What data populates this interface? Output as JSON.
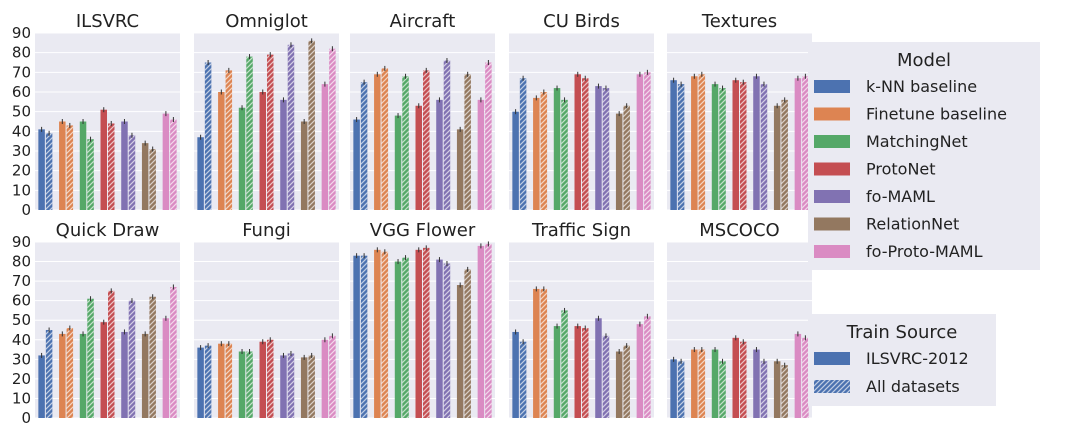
{
  "chart_data": {
    "type": "bar",
    "ylim": [
      0,
      90
    ],
    "yticks": [
      "0",
      "10",
      "20",
      "30",
      "40",
      "50",
      "60",
      "70",
      "80",
      "90"
    ],
    "grid": true,
    "legends": [
      {
        "title": "Model",
        "placement": "right-top",
        "entries": [
          {
            "name": "k-NN baseline",
            "color": "#4c72b0"
          },
          {
            "name": "Finetune baseline",
            "color": "#dd8452"
          },
          {
            "name": "MatchingNet",
            "color": "#55a868"
          },
          {
            "name": "ProtoNet",
            "color": "#c44e52"
          },
          {
            "name": "fo-MAML",
            "color": "#8172b2"
          },
          {
            "name": "RelationNet",
            "color": "#937860"
          },
          {
            "name": "fo-Proto-MAML",
            "color": "#da8bc3"
          }
        ]
      },
      {
        "title": "Train Source",
        "placement": "right-bottom",
        "entries": [
          {
            "name": "ILSVRC-2012",
            "pattern": "solid"
          },
          {
            "name": "All datasets",
            "pattern": "hatched"
          }
        ]
      }
    ],
    "series_pattern_order": [
      "ILSVRC-2012",
      "All datasets"
    ],
    "panels": [
      {
        "title": "ILSVRC",
        "ilsvrc": [
          41,
          45,
          45,
          51,
          45,
          34,
          49
        ],
        "all": [
          39,
          43,
          36,
          44,
          38,
          31,
          46
        ]
      },
      {
        "title": "Omniglot",
        "ilsvrc": [
          37,
          60,
          52,
          60,
          56,
          45,
          64
        ],
        "all": [
          75,
          71,
          78,
          79,
          84,
          86,
          82
        ]
      },
      {
        "title": "Aircraft",
        "ilsvrc": [
          46,
          69,
          48,
          53,
          56,
          41,
          56
        ],
        "all": [
          65,
          72,
          68,
          71,
          76,
          69,
          75
        ]
      },
      {
        "title": "CU Birds",
        "ilsvrc": [
          50,
          57,
          62,
          69,
          63,
          49,
          69
        ],
        "all": [
          67,
          60,
          56,
          67,
          62,
          53,
          70
        ]
      },
      {
        "title": "Textures",
        "ilsvrc": [
          66,
          68,
          64,
          66,
          68,
          53,
          67
        ],
        "all": [
          64,
          69,
          62,
          65,
          64,
          56,
          68
        ]
      },
      {
        "title": "Quick Draw",
        "ilsvrc": [
          32,
          43,
          43,
          49,
          44,
          43,
          51
        ],
        "all": [
          45,
          46,
          61,
          65,
          60,
          62,
          67
        ]
      },
      {
        "title": "Fungi",
        "ilsvrc": [
          36,
          38,
          34,
          39,
          32,
          31,
          40
        ],
        "all": [
          37,
          38,
          34,
          40,
          33,
          32,
          42
        ]
      },
      {
        "title": "VGG Flower",
        "ilsvrc": [
          83,
          86,
          80,
          86,
          81,
          68,
          88
        ],
        "all": [
          83,
          85,
          82,
          87,
          79,
          76,
          89
        ]
      },
      {
        "title": "Traffic Sign",
        "ilsvrc": [
          44,
          66,
          47,
          47,
          51,
          34,
          48
        ],
        "all": [
          39,
          66,
          55,
          46,
          42,
          37,
          52
        ]
      },
      {
        "title": "MSCOCO",
        "ilsvrc": [
          30,
          35,
          35,
          41,
          35,
          29,
          43
        ],
        "all": [
          29,
          35,
          29,
          39,
          29,
          27,
          41
        ]
      }
    ]
  }
}
